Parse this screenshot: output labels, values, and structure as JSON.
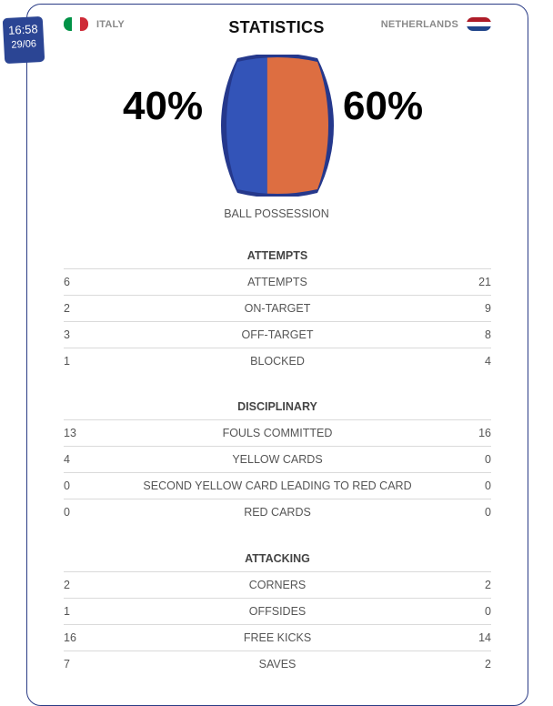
{
  "badge": {
    "time": "16:58",
    "date": "29/06"
  },
  "header": {
    "title": "STATISTICS",
    "home_team": "ITALY",
    "away_team": "NETHERLANDS"
  },
  "possession": {
    "home_pct": "40%",
    "away_pct": "60%",
    "home_value": 40,
    "away_value": 60,
    "label": "BALL POSSESSION",
    "home_color": "#3354b8",
    "away_color": "#dd6e41",
    "outline_color": "#25388c"
  },
  "flags": {
    "italy": [
      "#009246",
      "#ffffff",
      "#ce2b37"
    ],
    "netherlands": [
      "#ae1c28",
      "#ffffff",
      "#21468b"
    ]
  },
  "sections": [
    {
      "title": "ATTEMPTS",
      "rows": [
        {
          "home": "6",
          "label": "ATTEMPTS",
          "away": "21"
        },
        {
          "home": "2",
          "label": "ON-TARGET",
          "away": "9"
        },
        {
          "home": "3",
          "label": "OFF-TARGET",
          "away": "8"
        },
        {
          "home": "1",
          "label": "BLOCKED",
          "away": "4"
        }
      ]
    },
    {
      "title": "DISCIPLINARY",
      "rows": [
        {
          "home": "13",
          "label": "FOULS COMMITTED",
          "away": "16"
        },
        {
          "home": "4",
          "label": "YELLOW CARDS",
          "away": "0"
        },
        {
          "home": "0",
          "label": "SECOND YELLOW CARD LEADING TO RED CARD",
          "away": "0"
        },
        {
          "home": "0",
          "label": "RED CARDS",
          "away": "0"
        }
      ]
    },
    {
      "title": "ATTACKING",
      "rows": [
        {
          "home": "2",
          "label": "CORNERS",
          "away": "2"
        },
        {
          "home": "1",
          "label": "OFFSIDES",
          "away": "0"
        },
        {
          "home": "16",
          "label": "FREE KICKS",
          "away": "14"
        },
        {
          "home": "7",
          "label": "SAVES",
          "away": "2"
        }
      ]
    }
  ]
}
